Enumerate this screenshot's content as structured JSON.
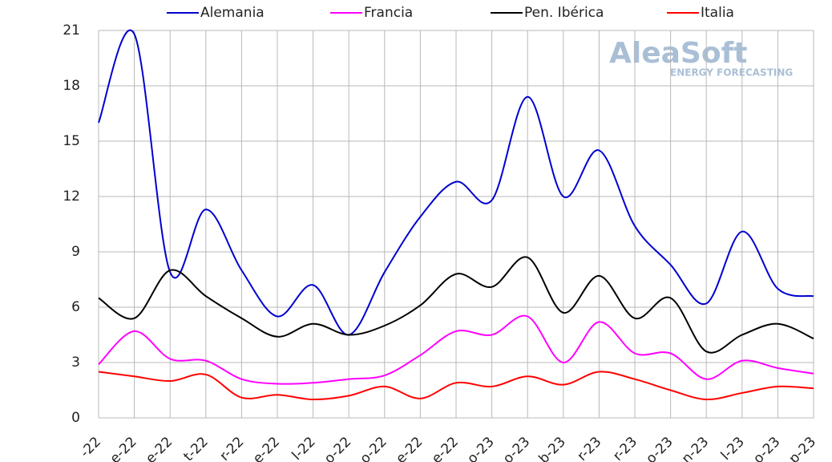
{
  "chart_data": {
    "type": "line",
    "categories": [
      "-22",
      "e-22",
      "e-22",
      "t-22",
      "r-22",
      "e-22",
      "l-22",
      "o-22",
      "o-22",
      "e-22",
      "e-22",
      "o-23",
      "o-23",
      "b-23",
      "r-23",
      "r-23",
      "o-23",
      "n-23",
      "l-23",
      "o-23",
      "p-23"
    ],
    "series": [
      {
        "name": "Alemania",
        "color": "#0000d0",
        "values": [
          16.0,
          20.8,
          7.9,
          11.3,
          8.0,
          5.5,
          7.2,
          4.5,
          7.9,
          10.9,
          12.8,
          11.8,
          17.4,
          12.0,
          14.5,
          10.4,
          8.3,
          6.2,
          10.1,
          7.0,
          6.6
        ]
      },
      {
        "name": "Francia",
        "color": "#ff00ff",
        "values": [
          2.9,
          4.7,
          3.2,
          3.1,
          2.1,
          1.85,
          1.9,
          2.1,
          2.3,
          3.4,
          4.7,
          4.5,
          5.5,
          3.0,
          5.2,
          3.5,
          3.5,
          2.1,
          3.1,
          2.7,
          2.4
        ]
      },
      {
        "name": "Pen. Ibérica",
        "color": "#000000",
        "values": [
          6.5,
          5.4,
          8.0,
          6.6,
          5.4,
          4.4,
          5.1,
          4.5,
          5.0,
          6.1,
          7.8,
          7.1,
          8.7,
          5.7,
          7.7,
          5.4,
          6.5,
          3.6,
          4.5,
          5.1,
          4.3
        ]
      },
      {
        "name": "Italia",
        "color": "#ff0000",
        "values": [
          2.5,
          2.25,
          2.0,
          2.35,
          1.1,
          1.25,
          1.0,
          1.2,
          1.7,
          1.05,
          1.9,
          1.7,
          2.25,
          1.8,
          2.5,
          2.1,
          1.5,
          1.0,
          1.35,
          1.7,
          1.6
        ]
      }
    ],
    "ylim": [
      0,
      21
    ],
    "yticks": [
      0,
      3,
      6,
      9,
      12,
      15,
      18,
      21
    ],
    "grid": true,
    "watermark": {
      "brand": "AleaSoft",
      "tagline": "ENERGY FORECASTING"
    }
  }
}
